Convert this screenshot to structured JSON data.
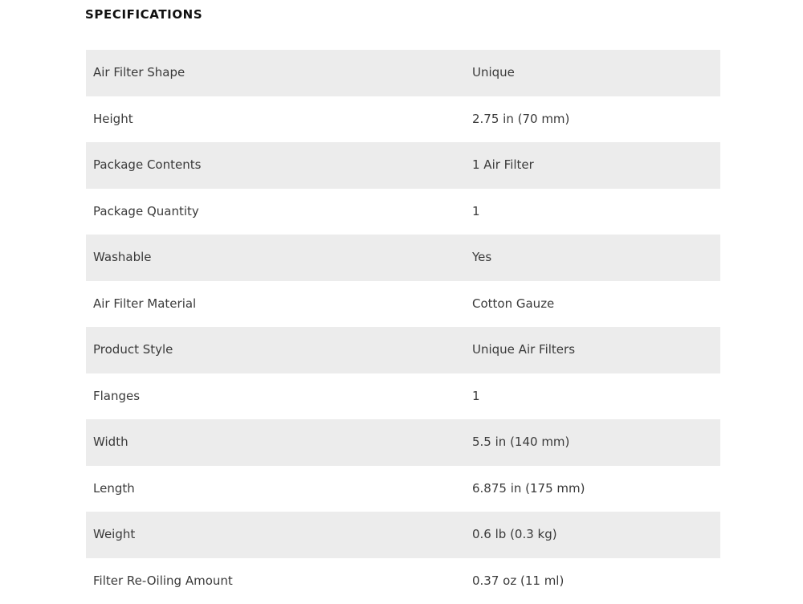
{
  "title": "SPECIFICATIONS",
  "rows": [
    {
      "label": "Air Filter Shape",
      "value": "Unique"
    },
    {
      "label": "Height",
      "value": "2.75 in (70 mm)"
    },
    {
      "label": "Package Contents",
      "value": "1 Air Filter"
    },
    {
      "label": "Package Quantity",
      "value": "1"
    },
    {
      "label": "Washable",
      "value": "Yes"
    },
    {
      "label": "Air Filter Material",
      "value": "Cotton Gauze"
    },
    {
      "label": "Product Style",
      "value": "Unique Air Filters"
    },
    {
      "label": "Flanges",
      "value": "1"
    },
    {
      "label": "Width",
      "value": "5.5 in (140 mm)"
    },
    {
      "label": "Length",
      "value": "6.875 in (175 mm)"
    },
    {
      "label": "Weight",
      "value": "0.6 lb (0.3 kg)"
    },
    {
      "label": "Filter Re-Oiling Amount",
      "value": "0.37 oz (11 ml)"
    }
  ]
}
